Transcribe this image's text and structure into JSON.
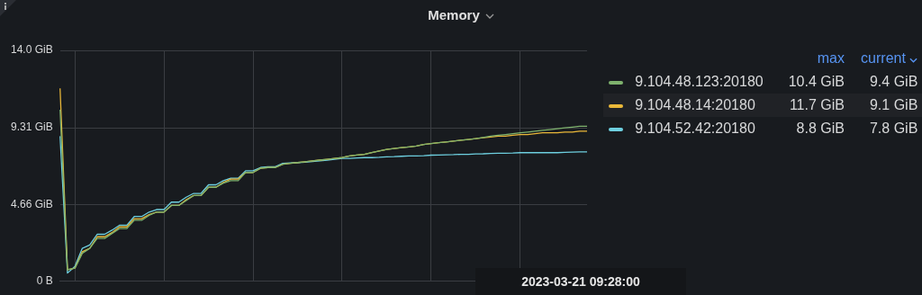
{
  "chart_data": {
    "type": "line",
    "title": "Memory",
    "categories": [
      null,
      null,
      null,
      null,
      null,
      null,
      null,
      null,
      null,
      null,
      null,
      null,
      null,
      null,
      null,
      null,
      null,
      null,
      null,
      null,
      null,
      null,
      null,
      null,
      null,
      null,
      null,
      null,
      null,
      null,
      null,
      null,
      null,
      null,
      null,
      null,
      null,
      null,
      null,
      null,
      null,
      null,
      null,
      null,
      null,
      null,
      null,
      null,
      null,
      null,
      null,
      null,
      null,
      null,
      null,
      null,
      null,
      null,
      null,
      null,
      null,
      null,
      null,
      null,
      null,
      null,
      null,
      null,
      null,
      null,
      null,
      null
    ],
    "series": [
      {
        "name": "9.104.48.123:20180",
        "color": "#7eb26d",
        "values": [
          10.4,
          0.7,
          0.8,
          1.7,
          2.0,
          2.6,
          2.6,
          2.9,
          3.2,
          3.2,
          3.7,
          3.7,
          4.0,
          4.2,
          4.2,
          4.6,
          4.6,
          4.9,
          5.2,
          5.2,
          5.7,
          5.7,
          5.95,
          6.1,
          6.1,
          6.6,
          6.6,
          6.85,
          6.9,
          6.9,
          7.1,
          7.15,
          7.2,
          7.25,
          7.3,
          7.35,
          7.4,
          7.45,
          7.5,
          7.6,
          7.65,
          7.7,
          7.8,
          7.9,
          8.0,
          8.05,
          8.1,
          8.15,
          8.2,
          8.3,
          8.35,
          8.4,
          8.45,
          8.5,
          8.55,
          8.6,
          8.65,
          8.72,
          8.8,
          8.85,
          8.9,
          8.95,
          9.0,
          9.05,
          9.1,
          9.15,
          9.2,
          9.25,
          9.3,
          9.35,
          9.4,
          9.4
        ]
      },
      {
        "name": "9.104.48.14:20180",
        "color": "#eab839",
        "values": [
          11.7,
          0.7,
          0.8,
          1.8,
          2.0,
          2.7,
          2.7,
          2.95,
          3.3,
          3.3,
          3.8,
          3.8,
          4.05,
          4.2,
          4.2,
          4.6,
          4.6,
          4.95,
          5.2,
          5.2,
          5.7,
          5.7,
          6.0,
          6.2,
          6.2,
          6.6,
          6.6,
          6.85,
          6.9,
          6.9,
          7.1,
          7.15,
          7.2,
          7.25,
          7.3,
          7.35,
          7.4,
          7.45,
          7.5,
          7.6,
          7.65,
          7.7,
          7.8,
          7.9,
          8.0,
          8.05,
          8.1,
          8.15,
          8.2,
          8.3,
          8.35,
          8.4,
          8.45,
          8.5,
          8.55,
          8.6,
          8.65,
          8.7,
          8.75,
          8.8,
          8.8,
          8.85,
          8.9,
          8.9,
          8.95,
          9.0,
          9.0,
          9.0,
          9.05,
          9.05,
          9.1,
          9.1
        ]
      },
      {
        "name": "9.104.52.42:20180",
        "color": "#6ed0e0",
        "values": [
          8.8,
          0.5,
          0.9,
          2.0,
          2.2,
          2.85,
          2.85,
          3.1,
          3.4,
          3.4,
          3.93,
          3.93,
          4.2,
          4.35,
          4.35,
          4.8,
          4.8,
          5.1,
          5.33,
          5.33,
          5.85,
          5.85,
          6.1,
          6.25,
          6.25,
          6.7,
          6.7,
          6.9,
          6.95,
          6.95,
          7.15,
          7.18,
          7.2,
          7.22,
          7.26,
          7.3,
          7.35,
          7.4,
          7.45,
          7.45,
          7.48,
          7.5,
          7.5,
          7.52,
          7.55,
          7.56,
          7.58,
          7.6,
          7.6,
          7.62,
          7.65,
          7.66,
          7.67,
          7.68,
          7.7,
          7.7,
          7.72,
          7.73,
          7.75,
          7.76,
          7.77,
          7.78,
          7.8,
          7.8,
          7.8,
          7.8,
          7.8,
          7.8,
          7.82,
          7.83,
          7.85,
          7.85
        ]
      }
    ],
    "ylim": [
      0,
      14
    ],
    "yticks": [
      {
        "value": 0,
        "label": "0 B"
      },
      {
        "value": 4.66,
        "label": "4.66 GiB"
      },
      {
        "value": 9.31,
        "label": "9.31 GiB"
      },
      {
        "value": 14,
        "label": "14.0 GiB"
      }
    ],
    "tick_labels": "y",
    "grid": true,
    "legend": "right",
    "marker": "none",
    "line_style": "solid",
    "annotations": [
      "max",
      "current",
      "10.4 GiB",
      "9.4 GiB",
      "11.7 GiB",
      "9.1 GiB",
      "8.8 GiB",
      "7.8 GiB",
      "2023-03-21 09:28:00"
    ]
  }
}
